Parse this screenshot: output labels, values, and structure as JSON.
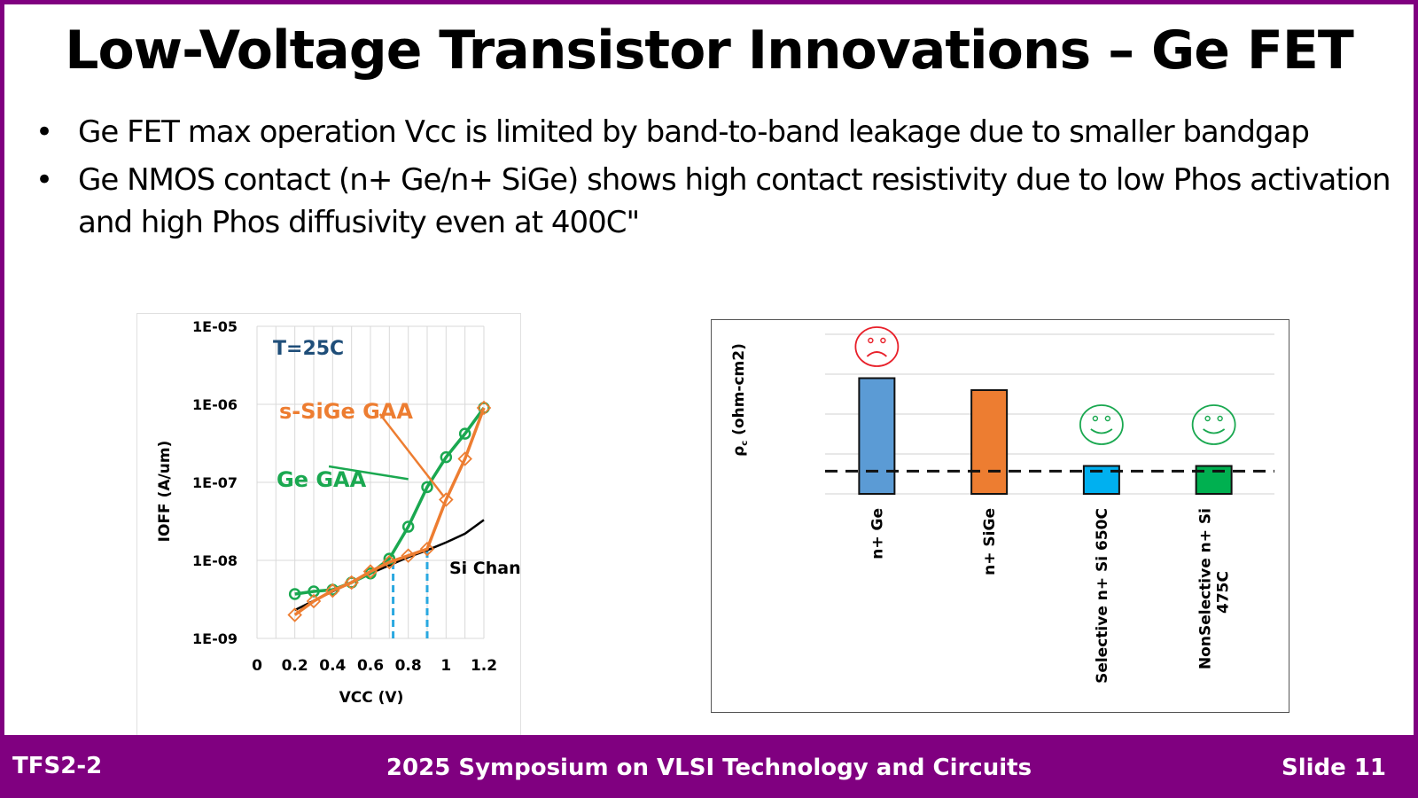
{
  "slide": {
    "title": "Low-Voltage Transistor Innovations – Ge FET",
    "bullets": [
      {
        "marker": "•",
        "text": "Ge FET max operation Vcc is limited by band-to-band leakage due to smaller bandgap"
      },
      {
        "marker": "•",
        "text": "Ge NMOS contact (n+ Ge/n+ SiGe) shows high contact resistivity due to low Phos activation and high Phos diffusivity even at 400C\""
      }
    ]
  },
  "footer": {
    "left": "TFS2-2",
    "center": "2025 Symposium on VLSI Technology and Circuits",
    "right": "Slide 11"
  },
  "colors": {
    "brand_purple": "#800080",
    "ge_gaa": "#1aa850",
    "ssige_gaa": "#ed7d31",
    "si_channel": "#000000",
    "marker_dashed": "#29a8e0",
    "annotation_blue": "#1f4e79",
    "bar_nge": "#5b9bd5",
    "bar_nsige": "#ed7d31",
    "bar_selective": "#00b0f0",
    "bar_nonselective": "#00b050",
    "sad_face": "#e8202a",
    "happy_face": "#1aa850"
  },
  "chart_data": [
    {
      "type": "line",
      "title": "",
      "annotation": "T=25C",
      "xlabel": "VCC (V)",
      "ylabel": "IOFF (A/um)",
      "yscale": "log",
      "xlim": [
        0,
        1.2
      ],
      "ylim": [
        1e-09,
        1e-05
      ],
      "x_ticks": [
        "0",
        "0.2",
        "0.4",
        "0.6",
        "0.8",
        "1",
        "1.2"
      ],
      "x_tick_values": [
        0,
        0.2,
        0.4,
        0.6,
        0.8,
        1.0,
        1.2
      ],
      "y_ticks": [
        "1E-09",
        "1E-08",
        "1E-07",
        "1E-06",
        "1E-05"
      ],
      "y_tick_values": [
        1e-09,
        1e-08,
        1e-07,
        1e-06,
        1e-05
      ],
      "grid": true,
      "series": [
        {
          "name": "Ge GAA",
          "label": "Ge GAA",
          "marker": "circle",
          "color_key": "ge_gaa",
          "x": [
            0.2,
            0.3,
            0.4,
            0.5,
            0.6,
            0.7,
            0.8,
            0.9,
            1.0,
            1.1,
            1.2
          ],
          "y": [
            3.7e-09,
            4e-09,
            4.2e-09,
            5.2e-09,
            6.8e-09,
            1.05e-08,
            2.7e-08,
            8.7e-08,
            2.1e-07,
            4.2e-07,
            9e-07
          ]
        },
        {
          "name": "s-SiGe GAA",
          "label": "s-SiGe GAA",
          "marker": "diamond",
          "color_key": "ssige_gaa",
          "x": [
            0.2,
            0.3,
            0.4,
            0.5,
            0.6,
            0.7,
            0.8,
            0.9,
            1.0,
            1.1,
            1.2
          ],
          "y": [
            2e-09,
            3e-09,
            4.1e-09,
            5.2e-09,
            7.2e-09,
            9.5e-09,
            1.15e-08,
            1.4e-08,
            6e-08,
            2e-07,
            9e-07
          ]
        },
        {
          "name": "Si Channel",
          "label": "Si Channel",
          "marker": "none",
          "color_key": "si_channel",
          "x": [
            0.2,
            0.4,
            0.6,
            0.8,
            0.9,
            1.0,
            1.1,
            1.2
          ],
          "y": [
            2.3e-09,
            4e-09,
            6.8e-09,
            1.1e-08,
            1.35e-08,
            1.7e-08,
            2.2e-08,
            3.3e-08
          ]
        }
      ],
      "vertical_markers": [
        {
          "x": 0.72,
          "from": 1e-09,
          "to": 9.5e-09,
          "style": "dashed"
        },
        {
          "x": 0.9,
          "from": 1e-09,
          "to": 1.4e-08,
          "style": "dashed"
        }
      ],
      "label_pointers": [
        {
          "series": "Ge GAA",
          "from": [
            0.38,
            1.6e-07
          ],
          "to": [
            0.8,
            1.1e-07
          ]
        },
        {
          "series": "s-SiGe GAA",
          "from": [
            0.65,
            7.5e-07
          ],
          "to": [
            0.99,
            6.5e-08
          ]
        }
      ]
    },
    {
      "type": "bar",
      "title": "",
      "ylabel": "ρc (ohm-cm2)",
      "ylabel_main": "ρ",
      "ylabel_sub": "c",
      "ylabel_rest": " (ohm-cm2)",
      "y_units": "relative (unlabeled axis)",
      "ylim": [
        0,
        4
      ],
      "grid": true,
      "categories": [
        "n+ Ge",
        "n+ SiGe",
        "Selective n+ Si 650C",
        "NonSelective n+ Si 475C"
      ],
      "category_lines": [
        [
          "n+ Ge"
        ],
        [
          "n+ SiGe"
        ],
        [
          "Selective n+ Si 650C"
        ],
        [
          "NonSelective n+ Si",
          "475C"
        ]
      ],
      "values": [
        2.9,
        2.6,
        0.7,
        0.7
      ],
      "bar_color_keys": [
        "bar_nge",
        "bar_nsige",
        "bar_selective",
        "bar_nonselective"
      ],
      "reference_line": {
        "value": 0.57,
        "style": "dashed"
      },
      "annotations": [
        {
          "category": "n+ Ge",
          "icon": "sad-face-icon"
        },
        {
          "category": "Selective n+ Si 650C",
          "icon": "happy-face-icon"
        },
        {
          "category": "NonSelective n+ Si 475C",
          "icon": "happy-face-icon"
        }
      ]
    }
  ]
}
